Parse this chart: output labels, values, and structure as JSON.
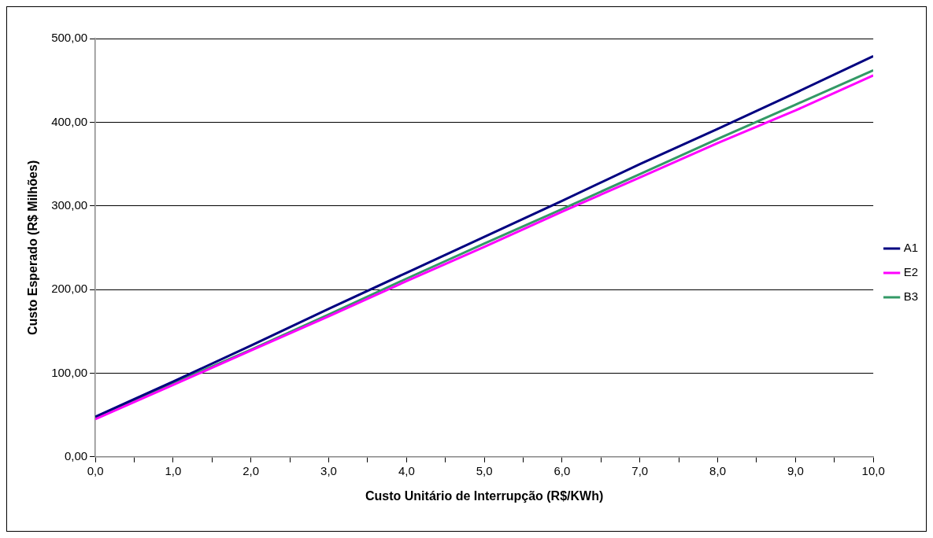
{
  "chart_data": {
    "type": "line",
    "xlabel": "Custo Unitário de Interrupção (R$/KWh)",
    "ylabel": "Custo Esperado (R$ Milhões)",
    "x": [
      0,
      1,
      2,
      3,
      4,
      5,
      6,
      7,
      8,
      9,
      10
    ],
    "series": [
      {
        "name": "A1",
        "color": "#000080",
        "values": [
          48,
          90,
          133,
          177,
          220,
          263,
          306,
          350,
          392,
          435,
          479
        ]
      },
      {
        "name": "E2",
        "color": "#ff00ff",
        "values": [
          45,
          86,
          127,
          168,
          210,
          251,
          293,
          334,
          375,
          414,
          456
        ]
      },
      {
        "name": "B3",
        "color": "#339966",
        "values": [
          47,
          88,
          128,
          170,
          213,
          255,
          296,
          338,
          380,
          421,
          462
        ]
      }
    ],
    "xlim": [
      0,
      10
    ],
    "xticks": [
      {
        "value": 0,
        "label": "0,0"
      },
      {
        "value": 0.5,
        "label": null
      },
      {
        "value": 1,
        "label": "1,0"
      },
      {
        "value": 1.5,
        "label": null
      },
      {
        "value": 2,
        "label": "2,0"
      },
      {
        "value": 2.5,
        "label": null
      },
      {
        "value": 3,
        "label": "3,0"
      },
      {
        "value": 3.5,
        "label": null
      },
      {
        "value": 4,
        "label": "4,0"
      },
      {
        "value": 4.5,
        "label": null
      },
      {
        "value": 5,
        "label": "5,0"
      },
      {
        "value": 5.5,
        "label": null
      },
      {
        "value": 6,
        "label": "6,0"
      },
      {
        "value": 6.5,
        "label": null
      },
      {
        "value": 7,
        "label": "7,0"
      },
      {
        "value": 7.5,
        "label": null
      },
      {
        "value": 8,
        "label": "8,0"
      },
      {
        "value": 8.5,
        "label": null
      },
      {
        "value": 9,
        "label": "9,0"
      },
      {
        "value": 9.5,
        "label": null
      },
      {
        "value": 10,
        "label": "10,0"
      }
    ],
    "ylim": [
      0,
      500
    ],
    "yticks": [
      {
        "value": 0,
        "label": "0,00"
      },
      {
        "value": 100,
        "label": "100,00"
      },
      {
        "value": 200,
        "label": "200,00"
      },
      {
        "value": 300,
        "label": "300,00"
      },
      {
        "value": 400,
        "label": "400,00"
      },
      {
        "value": 500,
        "label": "500,00"
      }
    ],
    "grid": "y",
    "legend": "right",
    "marker": "none",
    "line_style": "solid"
  }
}
